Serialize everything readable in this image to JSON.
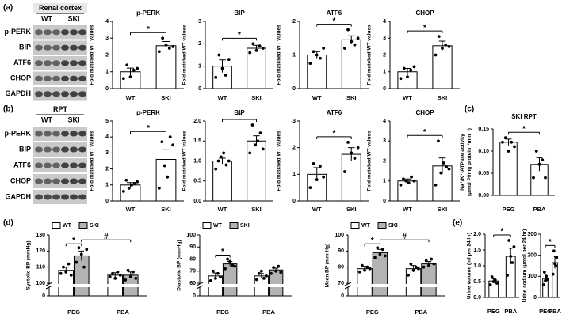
{
  "panel_labels": [
    "(a)",
    "(b)",
    "(c)",
    "(d)",
    "(e)"
  ],
  "blots": [
    {
      "header": "Renal cortex",
      "columns": [
        "WT",
        "SKI"
      ],
      "rows": [
        "p-PERK",
        "BIP",
        "ATF6",
        "CHOP",
        "GAPDH"
      ]
    },
    {
      "header": "RPT",
      "columns": [
        "WT",
        "SKI"
      ],
      "rows": [
        "p-PERK",
        "BIP",
        "ATF6",
        "CHOP",
        "GAPDH"
      ]
    }
  ],
  "chart_data": [
    {
      "type": "bar",
      "title": "p-PERK",
      "ylabel": "Fold matched WT values",
      "categories": [
        "WT",
        "SKI"
      ],
      "color": "#ffffff",
      "values": [
        1.0,
        2.55
      ],
      "errors": [
        0.22,
        0.25
      ],
      "points": [
        [
          0.6,
          1.4,
          0.7,
          1.1,
          1.2
        ],
        [
          2.2,
          3.0,
          2.6,
          2.4,
          2.5
        ]
      ],
      "ylim": [
        0,
        4
      ],
      "yticks": [
        0,
        1,
        2,
        3,
        4
      ],
      "annotations": [
        "*"
      ]
    },
    {
      "type": "bar",
      "title": "BIP",
      "ylabel": "Fold matched WT values",
      "categories": [
        "WT",
        "SKI"
      ],
      "color": "#ffffff",
      "values": [
        1.0,
        1.8
      ],
      "errors": [
        0.28,
        0.13
      ],
      "points": [
        [
          0.5,
          1.5,
          0.9,
          0.6,
          1.3
        ],
        [
          1.6,
          2.0,
          1.7,
          1.9,
          1.8
        ]
      ],
      "ylim": [
        0,
        3
      ],
      "yticks": [
        0,
        1,
        2,
        3
      ],
      "annotations": [
        "*"
      ]
    },
    {
      "type": "bar",
      "title": "ATF6",
      "ylabel": "Fold matched WT values",
      "categories": [
        "WT",
        "SKI"
      ],
      "color": "#ffffff",
      "values": [
        1.0,
        1.45
      ],
      "errors": [
        0.1,
        0.12
      ],
      "points": [
        [
          0.75,
          1.1,
          1.0,
          0.9,
          1.2
        ],
        [
          1.2,
          1.75,
          1.4,
          1.3,
          1.5
        ]
      ],
      "ylim": [
        0,
        2
      ],
      "yticks": [
        0,
        1,
        2
      ],
      "annotations": [
        "*"
      ]
    },
    {
      "type": "bar",
      "title": "CHOP",
      "ylabel": "Fold matched WT values",
      "categories": [
        "WT",
        "SKI"
      ],
      "color": "#ffffff",
      "values": [
        1.0,
        2.55
      ],
      "errors": [
        0.2,
        0.27
      ],
      "points": [
        [
          0.6,
          1.2,
          0.7,
          1.1,
          1.3
        ],
        [
          2.0,
          3.1,
          2.4,
          2.6,
          2.5
        ]
      ],
      "ylim": [
        0,
        4
      ],
      "yticks": [
        0,
        1,
        2,
        3,
        4
      ],
      "annotations": [
        "*"
      ]
    },
    {
      "type": "bar",
      "title": "p-PERK",
      "ylabel": "Fold matched WT values",
      "categories": [
        "WT",
        "SKI"
      ],
      "color": "#ffffff",
      "values": [
        1.0,
        2.6
      ],
      "errors": [
        0.15,
        0.6
      ],
      "points": [
        [
          0.6,
          1.3,
          0.8,
          1.0,
          1.1,
          1.2
        ],
        [
          0.8,
          3.7,
          2.2,
          1.5,
          4.0,
          3.5
        ]
      ],
      "ylim": [
        0,
        5
      ],
      "yticks": [
        0,
        1,
        2,
        3,
        4,
        5
      ],
      "annotations": [
        "*"
      ]
    },
    {
      "type": "bar",
      "title": "BIP",
      "ylabel": "Fold matched WT values",
      "categories": [
        "WT",
        "SKI"
      ],
      "color": "#ffffff",
      "values": [
        1.0,
        1.5
      ],
      "errors": [
        0.07,
        0.13
      ],
      "points": [
        [
          0.8,
          1.0,
          1.1,
          1.2,
          0.9,
          1.0
        ],
        [
          1.2,
          1.9,
          1.4,
          1.5,
          1.7,
          1.3
        ]
      ],
      "ylim": [
        0,
        2
      ],
      "yticks": [
        {
          "value": 0,
          "label": "0.0"
        },
        0.5,
        {
          "value": 1,
          "label": "1.0"
        },
        1.5,
        {
          "value": 2,
          "label": "2.0"
        }
      ],
      "annotations": [
        "*"
      ]
    },
    {
      "type": "bar",
      "title": "ATF6",
      "ylabel": "Fold matched WT values",
      "categories": [
        "WT",
        "SKI"
      ],
      "color": "#ffffff",
      "values": [
        1.0,
        1.75
      ],
      "errors": [
        0.25,
        0.25
      ],
      "points": [
        [
          0.5,
          1.4,
          0.8,
          1.3,
          0.9
        ],
        [
          1.1,
          2.2,
          1.8,
          1.6,
          2.0
        ]
      ],
      "ylim": [
        0,
        3
      ],
      "yticks": [
        0,
        1,
        2,
        3
      ],
      "annotations": [
        "*"
      ]
    },
    {
      "type": "bar",
      "title": "CHOP",
      "ylabel": "Fold matched WT values",
      "categories": [
        "WT",
        "SKI"
      ],
      "color": "#ffffff",
      "values": [
        1.0,
        1.75
      ],
      "errors": [
        0.1,
        0.4
      ],
      "points": [
        [
          0.8,
          1.1,
          1.0,
          0.9,
          1.2,
          1.0
        ],
        [
          0.8,
          3.0,
          1.4,
          1.9,
          1.7,
          1.6
        ]
      ],
      "ylim": [
        0,
        4
      ],
      "yticks": [
        0,
        1,
        2,
        3,
        4
      ],
      "annotations": [
        "*"
      ]
    },
    {
      "type": "bar",
      "title": "SKI RPT",
      "ylabel": [
        "Na⁺/K⁺-ATPase activity",
        "(μmol Pi/mg protein⁻¹min⁻¹)"
      ],
      "categories": [
        "PEG",
        "PBA"
      ],
      "color": "#ffffff",
      "values": [
        0.12,
        0.07
      ],
      "errors": [
        0.007,
        0.015
      ],
      "points": [
        [
          0.12,
          0.13,
          0.1,
          0.12,
          0.11
        ],
        [
          0.04,
          0.1,
          0.07,
          0.08,
          0.04
        ]
      ],
      "ylim": [
        0,
        0.15
      ],
      "yticks": [
        {
          "value": 0,
          "label": "0.00"
        },
        0.05,
        {
          "value": 0.1,
          "label": "0.10"
        },
        0.15
      ],
      "annotations": [
        "*"
      ]
    },
    {
      "type": "grouped_bar",
      "ylabel": "Systolic BP (mmHg)",
      "categories": [
        "PEG",
        "PBA"
      ],
      "legend": true,
      "series": [
        {
          "name": "WT",
          "color": "#ffffff",
          "values": [
            108,
            105
          ],
          "errors": [
            2,
            1.5
          ],
          "points": [
            [
              106,
              110,
              107,
              112,
              105
            ],
            [
              104,
              106,
              103,
              107,
              105
            ]
          ]
        },
        {
          "name": "SKI",
          "color": "#b3b3b3",
          "values": [
            117,
            105
          ],
          "errors": [
            3,
            2
          ],
          "points": [
            [
              113,
              122,
              118,
              110,
              121
            ],
            [
              102,
              108,
              104,
              107,
              103
            ]
          ]
        }
      ],
      "ylim": [
        0,
        130
      ],
      "axis_break": 100,
      "yticks": [
        0,
        100,
        110,
        120,
        130
      ],
      "annotations": [
        "*",
        "#"
      ]
    },
    {
      "type": "grouped_bar",
      "ylabel": "Diastolic BP (mmHg)",
      "categories": [
        "PEG",
        "PBA"
      ],
      "legend": true,
      "series": [
        {
          "name": "WT",
          "color": "#ffffff",
          "values": [
            66,
            66
          ],
          "errors": [
            2.5,
            2
          ],
          "points": [
            [
              62,
              70,
              64,
              68,
              65
            ],
            [
              63,
              68,
              70,
              64,
              66
            ]
          ]
        },
        {
          "name": "SKI",
          "color": "#b3b3b3",
          "values": [
            76,
            71
          ],
          "errors": [
            2,
            1.5
          ],
          "points": [
            [
              72,
              80,
              78,
              75,
              74
            ],
            [
              68,
              73,
              70,
              74,
              69
            ]
          ]
        }
      ],
      "ylim": [
        0,
        100
      ],
      "axis_break": 60,
      "yticks": [
        0,
        60,
        70,
        80,
        90,
        100
      ],
      "annotations": [
        "*"
      ]
    },
    {
      "type": "grouped_bar",
      "ylabel": "Mean BP (mm Hg)",
      "categories": [
        "PEG",
        "PBA"
      ],
      "legend": true,
      "series": [
        {
          "name": "WT",
          "color": "#ffffff",
          "values": [
            79,
            79
          ],
          "errors": [
            1.5,
            2
          ],
          "points": [
            [
              77,
              81,
              78,
              80,
              79
            ],
            [
              75,
              82,
              78,
              80,
              79
            ]
          ]
        },
        {
          "name": "SKI",
          "color": "#b3b3b3",
          "values": [
            89,
            82
          ],
          "errors": [
            2,
            1.5
          ],
          "points": [
            [
              86,
              92,
              88,
              91,
              87
            ],
            [
              80,
              84,
              81,
              85,
              82
            ]
          ]
        }
      ],
      "ylim": [
        0,
        100
      ],
      "axis_break": 70,
      "yticks": [
        0,
        70,
        80,
        90,
        100
      ],
      "annotations": [
        "*",
        "#"
      ]
    },
    {
      "type": "bar",
      "ylabel": "Urine volume (ml per 24 hr)",
      "categories": [
        "PEG",
        "PBA"
      ],
      "color": "#ffffff",
      "values": [
        0.52,
        1.3
      ],
      "errors": [
        0.07,
        0.25
      ],
      "points": [
        [
          0.4,
          0.65,
          0.5,
          0.55,
          0.45
        ],
        [
          0.7,
          1.8,
          1.3,
          1.1,
          1.6
        ]
      ],
      "ylim": [
        0,
        2
      ],
      "yticks": [
        {
          "value": 0,
          "label": "0.0"
        },
        0.5,
        {
          "value": 1,
          "label": "1.0"
        },
        1.5,
        {
          "value": 2,
          "label": "2.0"
        }
      ],
      "annotations": [
        "*"
      ]
    },
    {
      "type": "bar",
      "ylabel": "Urine sodium (μmol per 24 hr)",
      "categories": [
        "PEG",
        "PBA"
      ],
      "color": "#ffffff",
      "values": [
        90,
        165
      ],
      "errors": [
        20,
        28
      ],
      "points": [
        [
          60,
          120,
          80,
          100,
          85
        ],
        [
          110,
          220,
          160,
          150,
          190
        ]
      ],
      "ylim": [
        0,
        300
      ],
      "yticks": [
        0,
        100,
        200,
        300
      ],
      "annotations": [
        "*"
      ]
    }
  ]
}
